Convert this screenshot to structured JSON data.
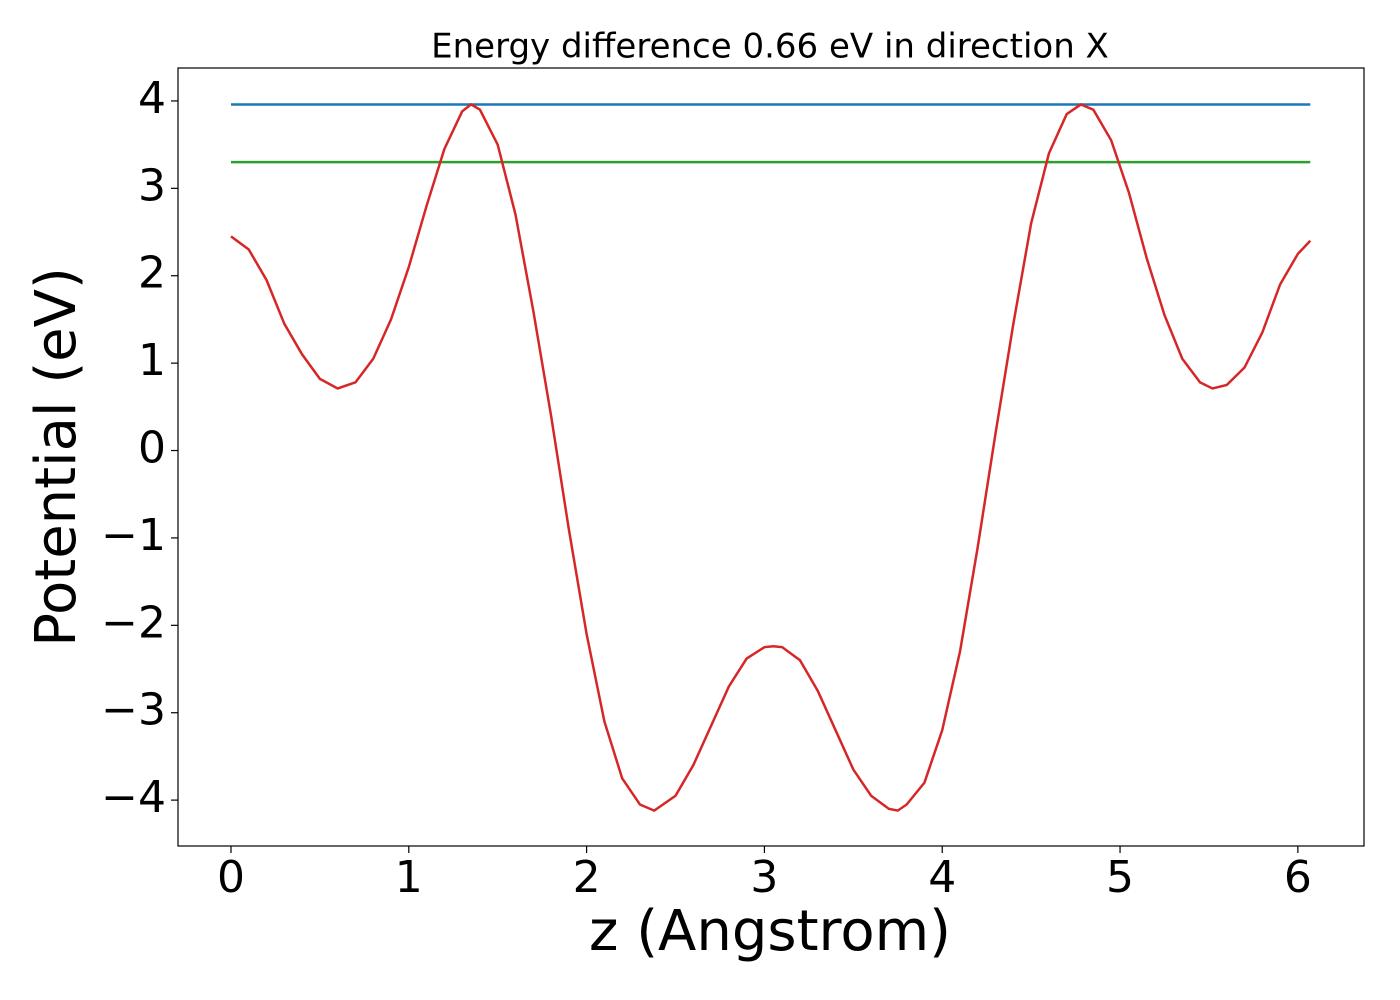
{
  "chart_data": {
    "type": "line",
    "title": "Energy difference 0.66 eV in direction X",
    "x_label": "z (Angstrom)",
    "y_label": "Potential (eV)",
    "xlim": [
      -0.298,
      6.372
    ],
    "ylim": [
      -4.525,
      4.377
    ],
    "xticks": [
      0,
      1,
      2,
      3,
      4,
      5,
      6
    ],
    "yticks": [
      {
        "value": -4,
        "label": "−4"
      },
      {
        "value": -3,
        "label": "−3"
      },
      {
        "value": -2,
        "label": "−2"
      },
      {
        "value": -1,
        "label": "−1"
      },
      0,
      1,
      2,
      3,
      4
    ],
    "grid": false,
    "series": [
      {
        "color": "#1f77b4",
        "x": [
          0,
          6.07
        ],
        "values": [
          3.96,
          3.96
        ]
      },
      {
        "color": "#2ca02c",
        "x": [
          0,
          6.07
        ],
        "values": [
          3.3,
          3.3
        ]
      },
      {
        "color": "#d62728",
        "x": [
          0,
          0.1,
          0.2,
          0.3,
          0.4,
          0.5,
          0.6,
          0.7,
          0.8,
          0.9,
          1.0,
          1.1,
          1.2,
          1.3,
          1.35,
          1.4,
          1.5,
          1.6,
          1.7,
          1.8,
          1.9,
          2.0,
          2.1,
          2.2,
          2.3,
          2.38,
          2.5,
          2.6,
          2.7,
          2.8,
          2.9,
          3.0,
          3.05,
          3.1,
          3.2,
          3.3,
          3.4,
          3.5,
          3.6,
          3.7,
          3.75,
          3.8,
          3.9,
          4.0,
          4.1,
          4.2,
          4.3,
          4.4,
          4.5,
          4.6,
          4.7,
          4.78,
          4.85,
          4.95,
          5.05,
          5.15,
          5.25,
          5.35,
          5.45,
          5.52,
          5.6,
          5.7,
          5.8,
          5.9,
          6.0,
          6.07
        ],
        "values": [
          2.45,
          2.3,
          1.95,
          1.45,
          1.1,
          0.82,
          0.71,
          0.78,
          1.05,
          1.5,
          2.1,
          2.8,
          3.45,
          3.88,
          3.96,
          3.9,
          3.5,
          2.7,
          1.6,
          0.4,
          -0.9,
          -2.1,
          -3.1,
          -3.75,
          -4.05,
          -4.12,
          -3.95,
          -3.6,
          -3.15,
          -2.7,
          -2.38,
          -2.25,
          -2.24,
          -2.25,
          -2.4,
          -2.75,
          -3.2,
          -3.65,
          -3.95,
          -4.1,
          -4.12,
          -4.05,
          -3.8,
          -3.2,
          -2.3,
          -1.1,
          0.2,
          1.45,
          2.6,
          3.4,
          3.85,
          3.96,
          3.9,
          3.55,
          2.95,
          2.2,
          1.55,
          1.05,
          0.78,
          0.71,
          0.75,
          0.95,
          1.35,
          1.9,
          2.25,
          2.4
        ]
      }
    ]
  }
}
